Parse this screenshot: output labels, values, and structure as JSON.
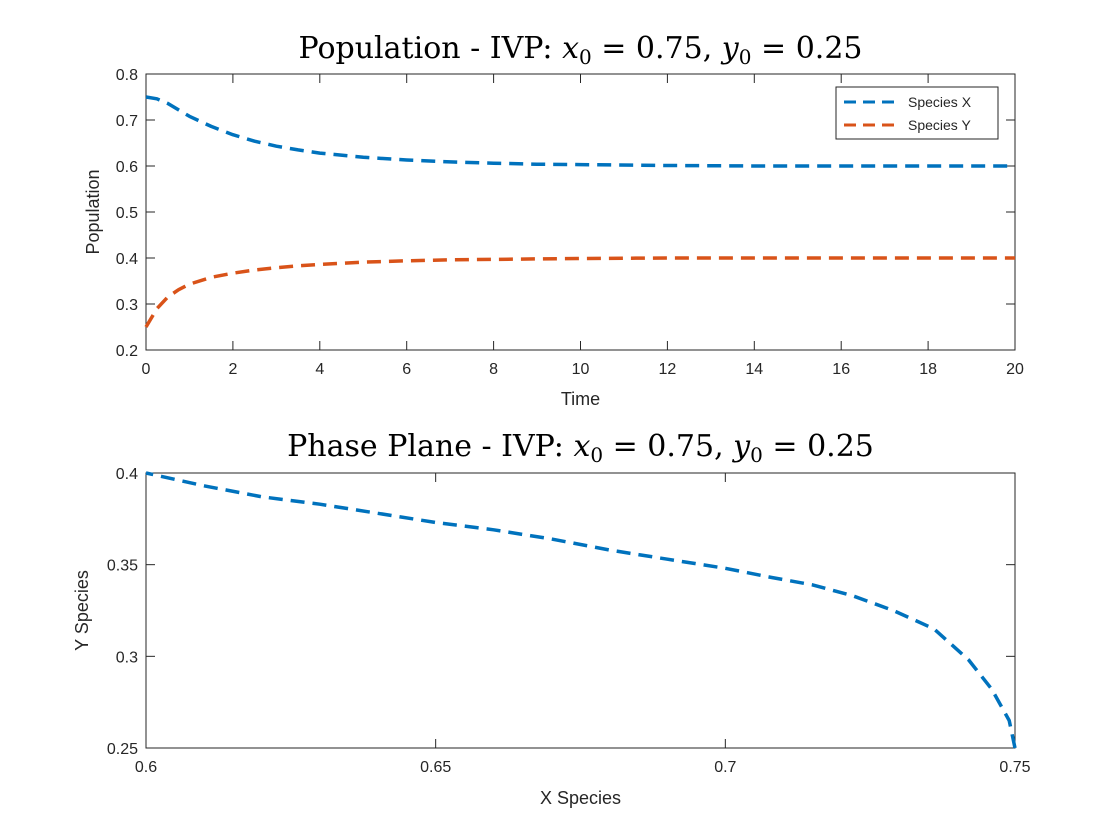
{
  "chart_data": [
    {
      "type": "line",
      "title": "Population - IVP: x0 = 0.75, y0 = 0.25",
      "title_parts": {
        "prefix": "Population - IVP: ",
        "sym1": "x",
        "sub1": "0",
        "eq1": " = 0.75, ",
        "sym2": "y",
        "sub2": "0",
        "eq2": " = 0.25"
      },
      "xlabel": "Time",
      "ylabel": "Population",
      "xlim": [
        0,
        20
      ],
      "ylim": [
        0.2,
        0.8
      ],
      "xticks": [
        0,
        2,
        4,
        6,
        8,
        10,
        12,
        14,
        16,
        18,
        20
      ],
      "yticks": [
        0.2,
        0.3,
        0.4,
        0.5,
        0.6,
        0.7,
        0.8
      ],
      "xtick_labels": [
        "0",
        "2",
        "4",
        "6",
        "8",
        "10",
        "12",
        "14",
        "16",
        "18",
        "20"
      ],
      "ytick_labels": [
        "0.2",
        "0.3",
        "0.4",
        "0.5",
        "0.6",
        "0.7",
        "0.8"
      ],
      "grid": false,
      "legend": "top-right",
      "x": [
        0,
        0.25,
        0.5,
        0.75,
        1,
        1.5,
        2,
        2.5,
        3,
        3.5,
        4,
        5,
        6,
        7,
        8,
        9,
        10,
        12,
        14,
        16,
        18,
        20
      ],
      "series": [
        {
          "name": "Species X",
          "color": "#0072BD",
          "values": [
            0.75,
            0.746,
            0.736,
            0.722,
            0.708,
            0.686,
            0.668,
            0.654,
            0.643,
            0.635,
            0.628,
            0.619,
            0.613,
            0.609,
            0.606,
            0.604,
            0.603,
            0.601,
            0.6,
            0.6,
            0.6,
            0.6
          ]
        },
        {
          "name": "Species Y",
          "color": "#D95319",
          "values": [
            0.25,
            0.29,
            0.315,
            0.331,
            0.343,
            0.358,
            0.367,
            0.374,
            0.379,
            0.383,
            0.386,
            0.391,
            0.394,
            0.396,
            0.397,
            0.398,
            0.399,
            0.4,
            0.4,
            0.4,
            0.4,
            0.4
          ]
        }
      ]
    },
    {
      "type": "line",
      "title": "Phase Plane - IVP: x0 = 0.75, y0 = 0.25",
      "title_parts": {
        "prefix": "Phase Plane - IVP: ",
        "sym1": "x",
        "sub1": "0",
        "eq1": " = 0.75, ",
        "sym2": "y",
        "sub2": "0",
        "eq2": " = 0.25"
      },
      "xlabel": "X Species",
      "ylabel": "Y Species",
      "xlim": [
        0.6,
        0.75
      ],
      "ylim": [
        0.25,
        0.4
      ],
      "xticks": [
        0.6,
        0.65,
        0.7,
        0.75
      ],
      "yticks": [
        0.25,
        0.3,
        0.35,
        0.4
      ],
      "xtick_labels": [
        "0.6",
        "0.65",
        "0.7",
        "0.75"
      ],
      "ytick_labels": [
        "0.25",
        "0.3",
        "0.35",
        "0.4"
      ],
      "grid": false,
      "series": [
        {
          "color": "#0072BD",
          "x": [
            0.75,
            0.749,
            0.746,
            0.742,
            0.736,
            0.729,
            0.722,
            0.715,
            0.708,
            0.7,
            0.69,
            0.68,
            0.67,
            0.66,
            0.65,
            0.64,
            0.63,
            0.62,
            0.61,
            0.6
          ],
          "y": [
            0.25,
            0.265,
            0.282,
            0.298,
            0.315,
            0.325,
            0.333,
            0.339,
            0.343,
            0.348,
            0.353,
            0.358,
            0.364,
            0.369,
            0.373,
            0.378,
            0.383,
            0.387,
            0.393,
            0.4
          ]
        }
      ]
    }
  ]
}
